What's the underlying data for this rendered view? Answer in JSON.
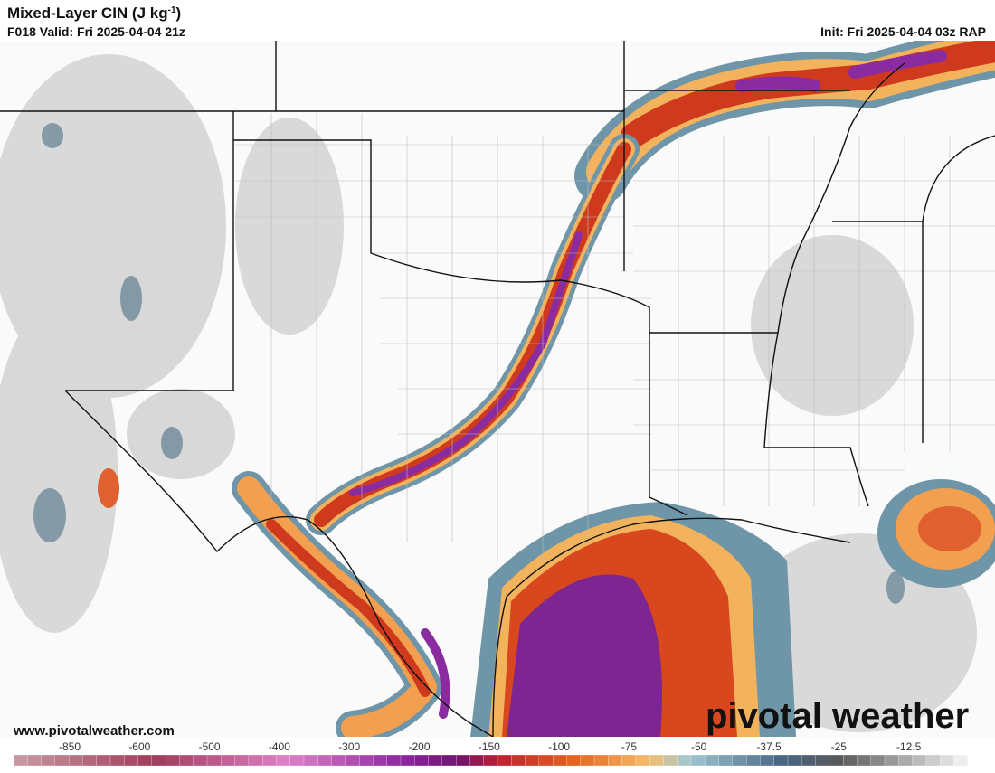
{
  "header": {
    "title": "Mixed-Layer CIN (J kg",
    "title_superscript": "-1",
    "title_close": ")",
    "valid": "F018 Valid: Fri 2025-04-04 21z",
    "init": "Init: Fri 2025-04-04 03z RAP"
  },
  "footer": {
    "website": "www.pivotalweather.com",
    "logo": "pivotal weather"
  },
  "colorbar": {
    "labels": [
      "-850",
      "-600",
      "-500",
      "-400",
      "-300",
      "-200",
      "-150",
      "-100",
      "-75",
      "-50",
      "-37.5",
      "-25",
      "-12.5"
    ]
  }
}
